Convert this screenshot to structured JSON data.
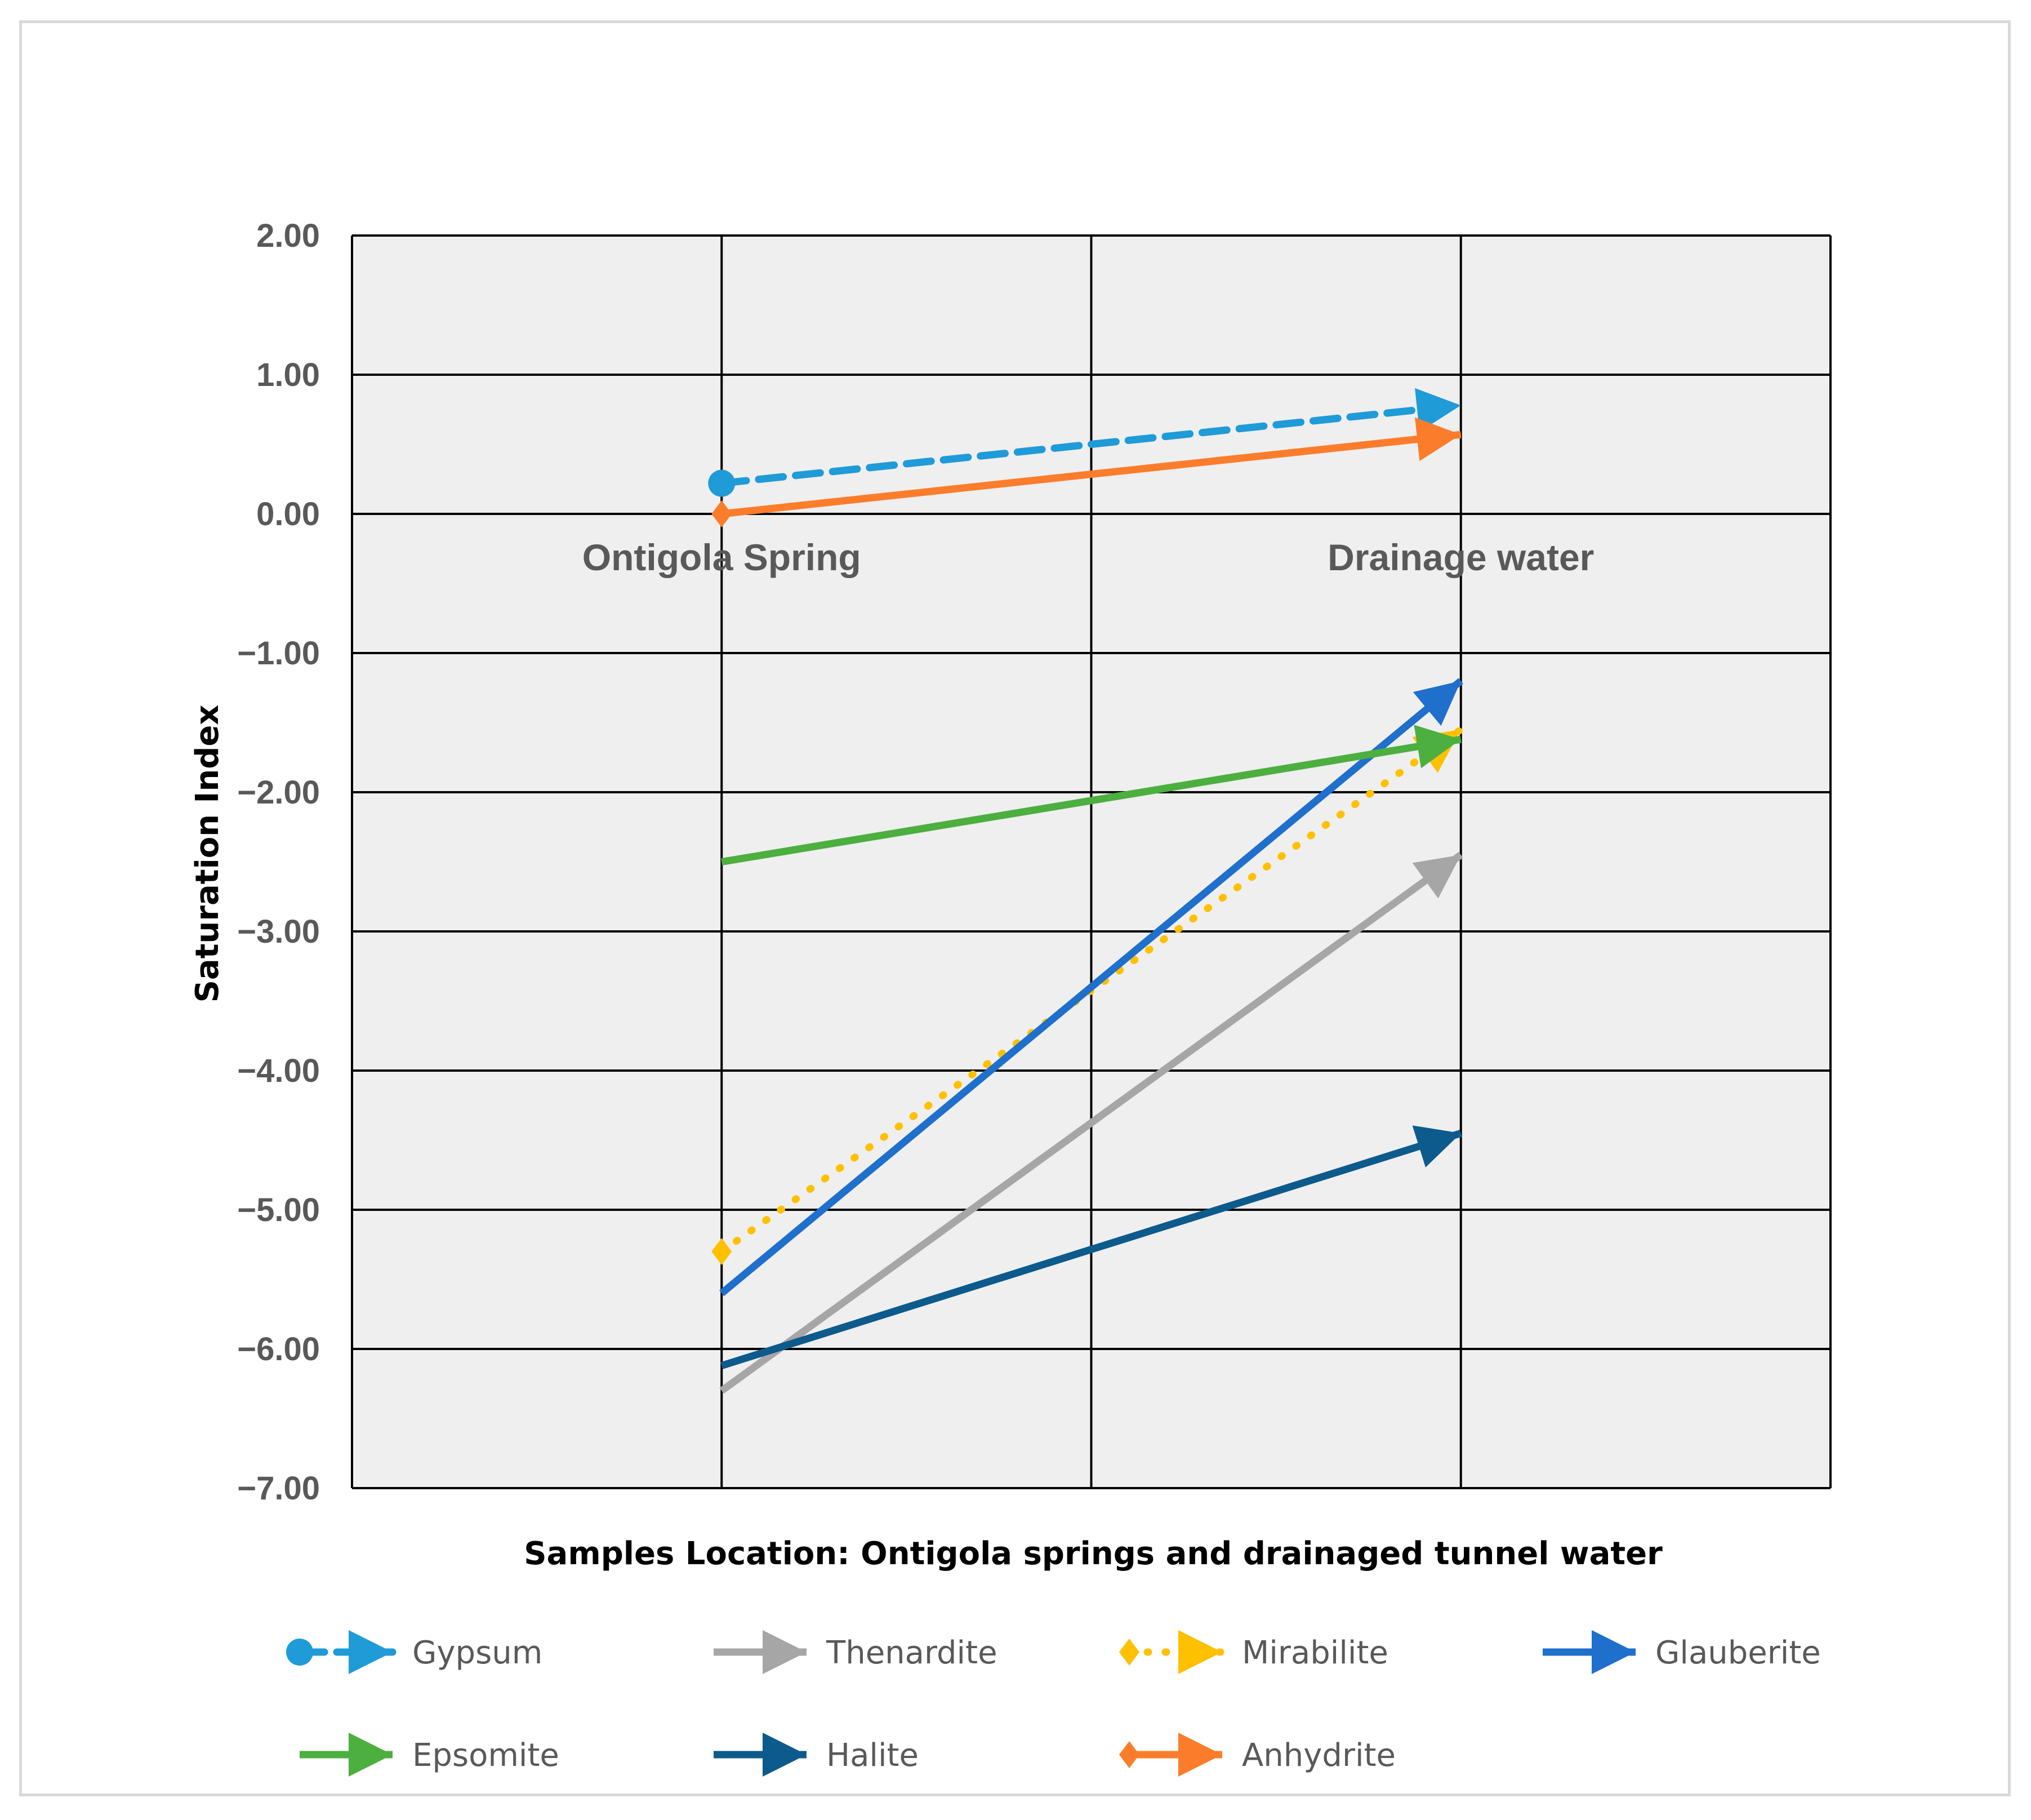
{
  "chart_data": {
    "type": "line",
    "title": "",
    "categories": [
      "Ontigola Spring",
      "Drainage water"
    ],
    "xlabel": "Samples Location: Ontigola springs and drainaged tunnel water",
    "ylabel": "Saturation Index",
    "ylim": [
      -7,
      2
    ],
    "y_ticks": [
      "2.00",
      "1.00",
      "0.00",
      "−1.00",
      "−2.00",
      "−3.00",
      "−4.00",
      "−5.00",
      "−6.00",
      "−7.00"
    ],
    "grid": true,
    "legend_position": "bottom",
    "series": [
      {
        "name": "Gypsum",
        "values": [
          0.22,
          0.78
        ],
        "color": "#1f9bd7",
        "dash": "dashed",
        "start_marker": "circle"
      },
      {
        "name": "Thenardite",
        "values": [
          -6.3,
          -2.45
        ],
        "color": "#a6a6a6",
        "dash": "solid",
        "start_marker": "none"
      },
      {
        "name": "Mirabilite",
        "values": [
          -5.3,
          -1.55
        ],
        "color": "#ffc000",
        "dash": "dotted",
        "start_marker": "diamond"
      },
      {
        "name": "Glauberite",
        "values": [
          -5.6,
          -1.2
        ],
        "color": "#1f6fcc",
        "dash": "solid",
        "start_marker": "none"
      },
      {
        "name": "Epsomite",
        "values": [
          -2.5,
          -1.62
        ],
        "color": "#4caf3f",
        "dash": "solid",
        "start_marker": "none"
      },
      {
        "name": "Halite",
        "values": [
          -6.12,
          -4.45
        ],
        "color": "#0d5a8c",
        "dash": "solid",
        "start_marker": "none"
      },
      {
        "name": "Anhydrite",
        "values": [
          0.0,
          0.57
        ],
        "color": "#fb7d2b",
        "dash": "solid",
        "start_marker": "diamond"
      }
    ]
  }
}
